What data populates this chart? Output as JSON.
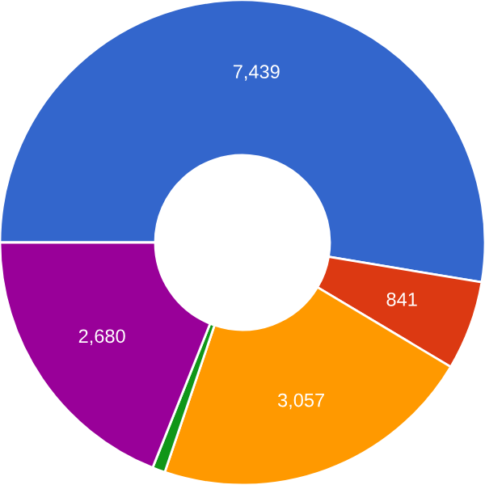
{
  "chart_data": {
    "type": "donut",
    "categories": [
      null,
      null,
      null,
      null,
      null
    ],
    "values": [
      7439,
      841,
      3057,
      120,
      2680
    ],
    "colors": [
      "#3366cc",
      "#dc3912",
      "#ff9900",
      "#109618",
      "#990099"
    ],
    "value_labels": [
      "7,439",
      "841",
      "3,057",
      null,
      "2,680"
    ]
  }
}
